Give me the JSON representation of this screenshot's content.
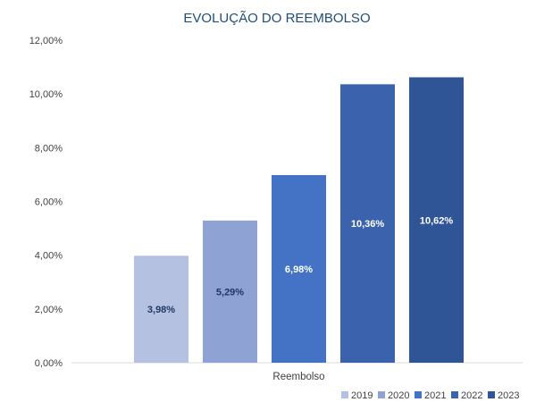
{
  "chart_data": {
    "type": "bar",
    "title": "EVOLUÇÃO DO REEMBOLSO",
    "categories": [
      "Reembolso"
    ],
    "series": [
      {
        "name": "2019",
        "values": [
          3.98
        ],
        "label": "3,98%",
        "color": "#b4c1e1",
        "label_color": "#1f3864"
      },
      {
        "name": "2020",
        "values": [
          5.29
        ],
        "label": "5,29%",
        "color": "#8ea2d4",
        "label_color": "#1f3864"
      },
      {
        "name": "2021",
        "values": [
          6.98
        ],
        "label": "6,98%",
        "color": "#4472c4",
        "label_color": "#ffffff"
      },
      {
        "name": "2022",
        "values": [
          10.36
        ],
        "label": "10,36%",
        "color": "#3a62ad",
        "label_color": "#ffffff"
      },
      {
        "name": "2023",
        "values": [
          10.62
        ],
        "label": "10,62%",
        "color": "#2f5597",
        "label_color": "#ffffff"
      }
    ],
    "ylim": [
      0,
      12
    ],
    "yticks": [
      {
        "value": 0,
        "label": "0,00%"
      },
      {
        "value": 2,
        "label": "2,00%"
      },
      {
        "value": 4,
        "label": "4,00%"
      },
      {
        "value": 6,
        "label": "6,00%"
      },
      {
        "value": 8,
        "label": "8,00%"
      },
      {
        "value": 10,
        "label": "10,00%"
      },
      {
        "value": 12,
        "label": "12,00%"
      }
    ],
    "grid": false,
    "legend_position": "bottom-right",
    "xlabel": "",
    "ylabel": ""
  }
}
